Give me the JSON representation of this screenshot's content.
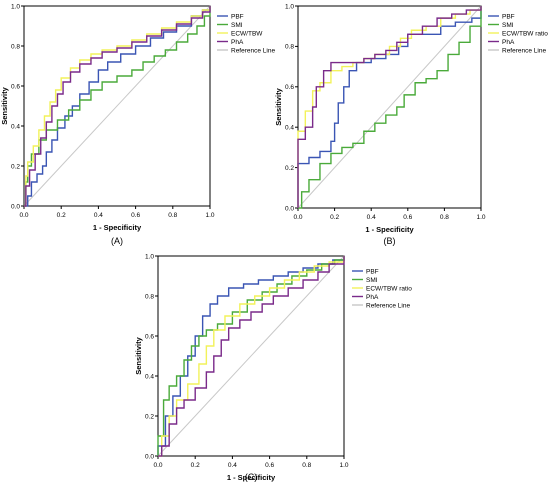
{
  "colors": {
    "PBF": "#3a55b4",
    "SMI": "#4aaa3a",
    "ECW": "#f2f25a",
    "PhA": "#7a2a8a",
    "ref": "#c8c8c8",
    "axis": "#000000"
  },
  "chart_data": [
    {
      "type": "line",
      "panel_label": "(A)",
      "xlabel": "1 - Specificity",
      "ylabel": "Sensitivity",
      "xlim": [
        0,
        1
      ],
      "ylim": [
        0,
        1
      ],
      "x_ticks": [
        "0.0",
        "0.2",
        "0.4",
        "0.6",
        "0.8",
        "1.0"
      ],
      "y_ticks": [
        "0.0",
        "0.2",
        "0.4",
        "0.6",
        "0.8",
        "1.0"
      ],
      "grid": false,
      "legend_position": "top-right",
      "reference_line": {
        "name": "Reference Line",
        "points": [
          [
            0,
            0
          ],
          [
            1,
            1
          ]
        ]
      },
      "series": [
        {
          "name": "PBF",
          "color_key": "PBF",
          "points": [
            [
              0,
              0
            ],
            [
              0.02,
              0.05
            ],
            [
              0.04,
              0.12
            ],
            [
              0.07,
              0.16
            ],
            [
              0.1,
              0.2
            ],
            [
              0.12,
              0.27
            ],
            [
              0.15,
              0.33
            ],
            [
              0.18,
              0.39
            ],
            [
              0.22,
              0.45
            ],
            [
              0.26,
              0.5
            ],
            [
              0.3,
              0.56
            ],
            [
              0.35,
              0.62
            ],
            [
              0.4,
              0.68
            ],
            [
              0.45,
              0.72
            ],
            [
              0.52,
              0.76
            ],
            [
              0.6,
              0.8
            ],
            [
              0.68,
              0.84
            ],
            [
              0.75,
              0.87
            ],
            [
              0.82,
              0.9
            ],
            [
              0.9,
              0.95
            ],
            [
              0.96,
              0.98
            ],
            [
              1,
              1
            ]
          ]
        },
        {
          "name": "SMI",
          "color_key": "SMI",
          "points": [
            [
              0,
              0
            ],
            [
              0.01,
              0.12
            ],
            [
              0.02,
              0.2
            ],
            [
              0.04,
              0.26
            ],
            [
              0.08,
              0.33
            ],
            [
              0.12,
              0.38
            ],
            [
              0.18,
              0.43
            ],
            [
              0.24,
              0.48
            ],
            [
              0.3,
              0.53
            ],
            [
              0.36,
              0.58
            ],
            [
              0.42,
              0.62
            ],
            [
              0.5,
              0.65
            ],
            [
              0.58,
              0.68
            ],
            [
              0.64,
              0.72
            ],
            [
              0.7,
              0.75
            ],
            [
              0.76,
              0.78
            ],
            [
              0.82,
              0.82
            ],
            [
              0.88,
              0.86
            ],
            [
              0.93,
              0.9
            ],
            [
              0.97,
              0.95
            ],
            [
              1,
              1
            ]
          ]
        },
        {
          "name": "ECW/TBW",
          "color_key": "ECW",
          "points": [
            [
              0,
              0
            ],
            [
              0.01,
              0.15
            ],
            [
              0.02,
              0.22
            ],
            [
              0.05,
              0.3
            ],
            [
              0.08,
              0.38
            ],
            [
              0.11,
              0.45
            ],
            [
              0.14,
              0.52
            ],
            [
              0.17,
              0.58
            ],
            [
              0.2,
              0.64
            ],
            [
              0.25,
              0.69
            ],
            [
              0.3,
              0.73
            ],
            [
              0.36,
              0.76
            ],
            [
              0.42,
              0.78
            ],
            [
              0.5,
              0.8
            ],
            [
              0.58,
              0.83
            ],
            [
              0.66,
              0.86
            ],
            [
              0.74,
              0.89
            ],
            [
              0.82,
              0.92
            ],
            [
              0.9,
              0.95
            ],
            [
              0.96,
              0.98
            ],
            [
              1,
              1
            ]
          ]
        },
        {
          "name": "PhA",
          "color_key": "PhA",
          "points": [
            [
              0,
              0
            ],
            [
              0.01,
              0.1
            ],
            [
              0.03,
              0.18
            ],
            [
              0.06,
              0.26
            ],
            [
              0.09,
              0.34
            ],
            [
              0.12,
              0.42
            ],
            [
              0.15,
              0.5
            ],
            [
              0.18,
              0.56
            ],
            [
              0.21,
              0.62
            ],
            [
              0.25,
              0.67
            ],
            [
              0.3,
              0.71
            ],
            [
              0.36,
              0.74
            ],
            [
              0.42,
              0.77
            ],
            [
              0.5,
              0.79
            ],
            [
              0.58,
              0.82
            ],
            [
              0.66,
              0.85
            ],
            [
              0.74,
              0.88
            ],
            [
              0.82,
              0.91
            ],
            [
              0.9,
              0.94
            ],
            [
              0.96,
              0.97
            ],
            [
              1,
              1
            ]
          ]
        }
      ]
    },
    {
      "type": "line",
      "panel_label": "(B)",
      "xlabel": "1 - Specificity",
      "ylabel": "Sensitivity",
      "xlim": [
        0,
        1
      ],
      "ylim": [
        0,
        1
      ],
      "x_ticks": [
        "0.0",
        "0.2",
        "0.4",
        "0.6",
        "0.8",
        "1.0"
      ],
      "y_ticks": [
        "0.0",
        "0.2",
        "0.4",
        "0.6",
        "0.8",
        "1.0"
      ],
      "grid": false,
      "legend_position": "top-right",
      "reference_line": {
        "name": "Reference Line",
        "points": [
          [
            0,
            0
          ],
          [
            1,
            1
          ]
        ]
      },
      "series": [
        {
          "name": "PBF",
          "color_key": "PBF",
          "points": [
            [
              0,
              0
            ],
            [
              0,
              0.22
            ],
            [
              0.06,
              0.25
            ],
            [
              0.12,
              0.28
            ],
            [
              0.18,
              0.33
            ],
            [
              0.2,
              0.42
            ],
            [
              0.22,
              0.52
            ],
            [
              0.25,
              0.6
            ],
            [
              0.28,
              0.68
            ],
            [
              0.32,
              0.72
            ],
            [
              0.4,
              0.74
            ],
            [
              0.48,
              0.76
            ],
            [
              0.55,
              0.8
            ],
            [
              0.6,
              0.86
            ],
            [
              0.68,
              0.86
            ],
            [
              0.78,
              0.9
            ],
            [
              0.86,
              0.92
            ],
            [
              0.95,
              0.94
            ],
            [
              1,
              1
            ]
          ]
        },
        {
          "name": "SMI",
          "color_key": "SMI",
          "points": [
            [
              0,
              0
            ],
            [
              0.02,
              0.08
            ],
            [
              0.06,
              0.14
            ],
            [
              0.12,
              0.22
            ],
            [
              0.18,
              0.27
            ],
            [
              0.24,
              0.3
            ],
            [
              0.3,
              0.32
            ],
            [
              0.36,
              0.38
            ],
            [
              0.42,
              0.42
            ],
            [
              0.48,
              0.46
            ],
            [
              0.54,
              0.5
            ],
            [
              0.58,
              0.56
            ],
            [
              0.64,
              0.62
            ],
            [
              0.7,
              0.64
            ],
            [
              0.76,
              0.68
            ],
            [
              0.82,
              0.76
            ],
            [
              0.88,
              0.82
            ],
            [
              0.94,
              0.9
            ],
            [
              1,
              1
            ]
          ]
        },
        {
          "name": "ECW/TBW ratio",
          "color_key": "ECW",
          "points": [
            [
              0,
              0
            ],
            [
              0,
              0.38
            ],
            [
              0.04,
              0.48
            ],
            [
              0.08,
              0.58
            ],
            [
              0.12,
              0.62
            ],
            [
              0.18,
              0.68
            ],
            [
              0.24,
              0.7
            ],
            [
              0.3,
              0.72
            ],
            [
              0.36,
              0.74
            ],
            [
              0.42,
              0.76
            ],
            [
              0.5,
              0.8
            ],
            [
              0.56,
              0.84
            ],
            [
              0.62,
              0.88
            ],
            [
              0.7,
              0.9
            ],
            [
              0.78,
              0.94
            ],
            [
              0.86,
              0.96
            ],
            [
              0.94,
              0.98
            ],
            [
              1,
              1
            ]
          ]
        },
        {
          "name": "PhA",
          "color_key": "PhA",
          "points": [
            [
              0,
              0
            ],
            [
              0,
              0.34
            ],
            [
              0.04,
              0.4
            ],
            [
              0.08,
              0.5
            ],
            [
              0.1,
              0.6
            ],
            [
              0.14,
              0.68
            ],
            [
              0.18,
              0.72
            ],
            [
              0.24,
              0.72
            ],
            [
              0.3,
              0.72
            ],
            [
              0.36,
              0.74
            ],
            [
              0.42,
              0.76
            ],
            [
              0.48,
              0.78
            ],
            [
              0.54,
              0.82
            ],
            [
              0.6,
              0.86
            ],
            [
              0.68,
              0.9
            ],
            [
              0.76,
              0.94
            ],
            [
              0.84,
              0.96
            ],
            [
              0.92,
              0.98
            ],
            [
              1,
              1
            ]
          ]
        }
      ]
    },
    {
      "type": "line",
      "panel_label": "(C)",
      "xlabel": "1 - Specificity",
      "ylabel": "Sensitivity",
      "xlim": [
        0,
        1
      ],
      "ylim": [
        0,
        1
      ],
      "x_ticks": [
        "0.0",
        "0.2",
        "0.4",
        "0.6",
        "0.8",
        "1.0"
      ],
      "y_ticks": [
        "0.0",
        "0.2",
        "0.4",
        "0.6",
        "0.8",
        "1.0"
      ],
      "grid": false,
      "legend_position": "top-right",
      "reference_line": {
        "name": "Reference Line",
        "points": [
          [
            0,
            0
          ],
          [
            1,
            1
          ]
        ]
      },
      "series": [
        {
          "name": "PBF",
          "color_key": "PBF",
          "points": [
            [
              0,
              0
            ],
            [
              0,
              0.05
            ],
            [
              0.04,
              0.2
            ],
            [
              0.08,
              0.3
            ],
            [
              0.12,
              0.4
            ],
            [
              0.16,
              0.5
            ],
            [
              0.2,
              0.6
            ],
            [
              0.24,
              0.7
            ],
            [
              0.28,
              0.76
            ],
            [
              0.32,
              0.8
            ],
            [
              0.38,
              0.84
            ],
            [
              0.46,
              0.86
            ],
            [
              0.54,
              0.88
            ],
            [
              0.62,
              0.9
            ],
            [
              0.7,
              0.92
            ],
            [
              0.78,
              0.94
            ],
            [
              0.86,
              0.96
            ],
            [
              0.94,
              0.98
            ],
            [
              1,
              1
            ]
          ]
        },
        {
          "name": "SMI",
          "color_key": "SMI",
          "points": [
            [
              0,
              0
            ],
            [
              0,
              0.1
            ],
            [
              0.03,
              0.28
            ],
            [
              0.06,
              0.35
            ],
            [
              0.1,
              0.4
            ],
            [
              0.14,
              0.48
            ],
            [
              0.18,
              0.55
            ],
            [
              0.22,
              0.6
            ],
            [
              0.26,
              0.63
            ],
            [
              0.32,
              0.66
            ],
            [
              0.4,
              0.72
            ],
            [
              0.48,
              0.78
            ],
            [
              0.56,
              0.82
            ],
            [
              0.64,
              0.86
            ],
            [
              0.72,
              0.9
            ],
            [
              0.8,
              0.93
            ],
            [
              0.88,
              0.96
            ],
            [
              0.95,
              0.98
            ],
            [
              1,
              1
            ]
          ]
        },
        {
          "name": "ECW/TBW ratio",
          "color_key": "ECW",
          "points": [
            [
              0,
              0
            ],
            [
              0.02,
              0.1
            ],
            [
              0.06,
              0.2
            ],
            [
              0.1,
              0.28
            ],
            [
              0.16,
              0.36
            ],
            [
              0.22,
              0.46
            ],
            [
              0.26,
              0.55
            ],
            [
              0.3,
              0.63
            ],
            [
              0.36,
              0.7
            ],
            [
              0.44,
              0.76
            ],
            [
              0.52,
              0.8
            ],
            [
              0.6,
              0.84
            ],
            [
              0.68,
              0.88
            ],
            [
              0.76,
              0.92
            ],
            [
              0.84,
              0.95
            ],
            [
              0.92,
              0.97
            ],
            [
              1,
              1
            ]
          ]
        },
        {
          "name": "PhA",
          "color_key": "PhA",
          "points": [
            [
              0,
              0
            ],
            [
              0.02,
              0.05
            ],
            [
              0.06,
              0.16
            ],
            [
              0.1,
              0.24
            ],
            [
              0.14,
              0.28
            ],
            [
              0.2,
              0.34
            ],
            [
              0.26,
              0.42
            ],
            [
              0.3,
              0.5
            ],
            [
              0.34,
              0.58
            ],
            [
              0.38,
              0.64
            ],
            [
              0.44,
              0.68
            ],
            [
              0.5,
              0.72
            ],
            [
              0.56,
              0.76
            ],
            [
              0.62,
              0.8
            ],
            [
              0.7,
              0.84
            ],
            [
              0.78,
              0.88
            ],
            [
              0.86,
              0.92
            ],
            [
              0.92,
              0.96
            ],
            [
              1,
              1
            ]
          ]
        }
      ]
    }
  ]
}
